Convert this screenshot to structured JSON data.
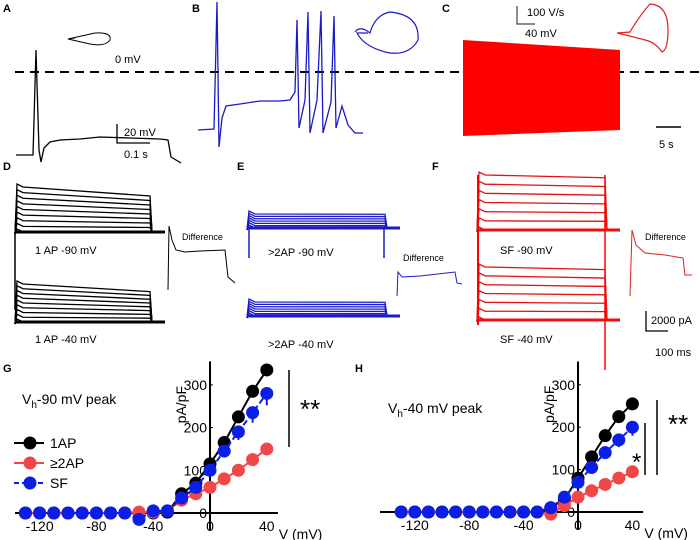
{
  "panels": {
    "A": {
      "letter": "A",
      "zero_label": "0 mV",
      "scale_v": "20 mV",
      "scale_t": "0.1 s"
    },
    "B": {
      "letter": "B"
    },
    "C": {
      "letter": "C",
      "scale_dvdt": "100 V/s",
      "scale_v": "40 mV",
      "scale_t": "5 s"
    },
    "D": {
      "letter": "D",
      "top": "1 AP -90 mV",
      "bottom": "1 AP -40 mV",
      "diff": "Difference"
    },
    "E": {
      "letter": "E",
      "top": ">2AP -90 mV",
      "bottom": ">2AP -40 mV",
      "diff": "Difference"
    },
    "F": {
      "letter": "F",
      "top": "SF -90 mV",
      "bottom": "SF -40 mV",
      "diff": "Difference",
      "scale_i": "2000 pA",
      "scale_t": "100 ms"
    }
  },
  "colors": {
    "1AP": "#000000",
    "2AP": "#f04848",
    "SF": "#0a1ee6",
    "trace_B": "#1a1ac8",
    "trace_C": "#ff0000"
  },
  "chart_data": [
    {
      "type": "line",
      "panel": "G",
      "letter": "G",
      "title": "Vh-90 mV peak",
      "title_main": "V",
      "title_sub": "h",
      "title_rest": "-90 mV peak",
      "xlabel": "V (mV)",
      "ylabel": "pA/pF",
      "xticks": [
        "-120",
        "-80",
        "-40",
        "0",
        "40"
      ],
      "yticks": [
        "0",
        "100",
        "200",
        "300"
      ],
      "xlim": [
        -135,
        45
      ],
      "ylim": [
        0,
        350
      ],
      "significance": "**",
      "x": [
        -130,
        -120,
        -110,
        -100,
        -90,
        -80,
        -70,
        -60,
        -50,
        -40,
        -30,
        -20,
        -10,
        0,
        10,
        20,
        30,
        40
      ],
      "series": [
        {
          "name": "1AP",
          "values": [
            0,
            0,
            0,
            0,
            0,
            0,
            0,
            0,
            0,
            0,
            2,
            45,
            70,
            115,
            165,
            225,
            285,
            335
          ]
        },
        {
          "name": "≥2AP",
          "values": [
            0,
            0,
            0,
            0,
            0,
            0,
            0,
            0,
            2,
            2,
            5,
            30,
            45,
            60,
            80,
            100,
            125,
            150
          ]
        },
        {
          "name": "SF",
          "values": [
            0,
            0,
            0,
            0,
            0,
            0,
            0,
            0,
            -15,
            5,
            5,
            35,
            60,
            100,
            145,
            190,
            235,
            280
          ]
        }
      ],
      "legend": [
        "1AP",
        "≥2AP",
        "SF"
      ]
    },
    {
      "type": "line",
      "panel": "H",
      "letter": "H",
      "title": "Vh-40 mV peak",
      "title_main": "V",
      "title_sub": "h",
      "title_rest": "-40 mV peak",
      "xlabel": "V (mV)",
      "ylabel": "pA/pF",
      "xticks": [
        "-120",
        "-80",
        "-40",
        "0",
        "40"
      ],
      "yticks": [
        "0",
        "100",
        "200",
        "300"
      ],
      "xlim": [
        -135,
        45
      ],
      "ylim": [
        0,
        350
      ],
      "significance": [
        "**",
        "*"
      ],
      "x": [
        -130,
        -120,
        -110,
        -100,
        -90,
        -80,
        -70,
        -60,
        -50,
        -40,
        -30,
        -20,
        -10,
        0,
        10,
        20,
        30,
        40
      ],
      "series": [
        {
          "name": "1AP",
          "values": [
            0,
            0,
            0,
            0,
            0,
            0,
            0,
            0,
            0,
            0,
            0,
            10,
            30,
            80,
            130,
            180,
            225,
            255
          ]
        },
        {
          "name": "≥2AP",
          "values": [
            0,
            0,
            0,
            0,
            0,
            0,
            0,
            0,
            0,
            0,
            0,
            -5,
            15,
            35,
            50,
            65,
            80,
            95
          ]
        },
        {
          "name": "SF",
          "values": [
            0,
            0,
            0,
            0,
            0,
            0,
            0,
            0,
            0,
            0,
            0,
            10,
            35,
            70,
            105,
            140,
            170,
            200
          ]
        }
      ]
    }
  ]
}
